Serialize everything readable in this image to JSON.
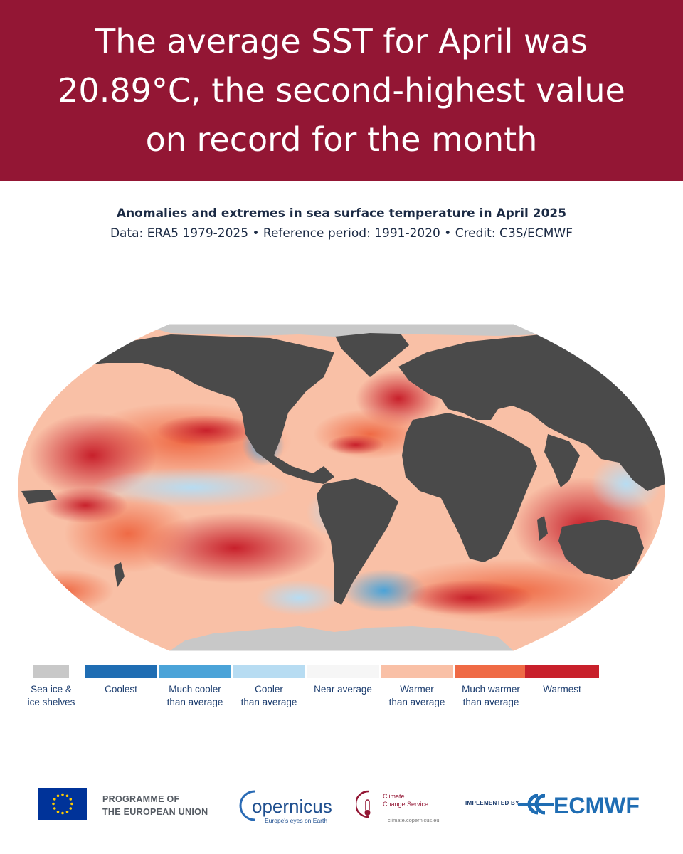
{
  "banner": {
    "headline": "The average SST for April was 20.89°C, the second-highest value on record for the month",
    "background": "#931634"
  },
  "map": {
    "title": "Anomalies and extremes in sea surface temperature in April 2025",
    "source_line": "Data: ERA5 1979-2025 • Reference period: 1991-2020 • Credit: C3S/ECMWF",
    "land_color": "#4a4a4a",
    "legend": [
      {
        "label": "Sea ice &\nice shelves",
        "color": "#c8c8c8"
      },
      {
        "label": "Coolest",
        "color": "#1f6db3"
      },
      {
        "label": "Much cooler\nthan average",
        "color": "#4aa3d8"
      },
      {
        "label": "Cooler\nthan average",
        "color": "#b7dcf2"
      },
      {
        "label": "Near average",
        "color": "#f6f6f6"
      },
      {
        "label": "Warmer\nthan average",
        "color": "#f9c0a6"
      },
      {
        "label": "Much warmer\nthan average",
        "color": "#ef6a45"
      },
      {
        "label": "Warmest",
        "color": "#c8202b"
      }
    ]
  },
  "footer": {
    "eu_label": "PROGRAMME OF\nTHE EUROPEAN UNION",
    "copernicus_name": "opernicus",
    "copernicus_tagline": "Europe's eyes on Earth",
    "ccs_name_1": "Climate",
    "ccs_name_2": "Change Service",
    "ccs_url": "climate.copernicus.eu",
    "implemented_by": "IMPLEMENTED BY",
    "ecmwf": "ECMWF"
  }
}
